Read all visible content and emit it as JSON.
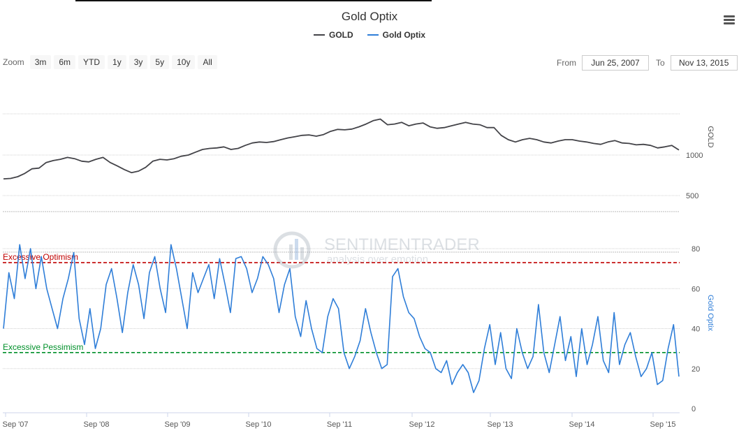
{
  "chart": {
    "title": "Gold Optix",
    "legend": [
      {
        "name": "GOLD",
        "color": "#434348"
      },
      {
        "name": "Gold Optix",
        "color": "#2f7ed8"
      }
    ]
  },
  "menu_icon": "hamburger-icon",
  "zoom": {
    "label": "Zoom",
    "buttons": [
      "3m",
      "6m",
      "YTD",
      "1y",
      "3y",
      "5y",
      "10y",
      "All"
    ]
  },
  "range": {
    "from_label": "From",
    "from_value": "Jun 25, 2007",
    "to_label": "To",
    "to_value": "Nov 13, 2015"
  },
  "watermark": {
    "name": "SENTIMENTRADER",
    "tagline": "analysis over emotion"
  },
  "chart_data": {
    "type": "line",
    "x_ticks": [
      "Sep '07",
      "Sep '08",
      "Sep '09",
      "Sep '10",
      "Sep '11",
      "Sep '12",
      "Sep '13",
      "Sep '14",
      "Sep '15"
    ],
    "panels": [
      {
        "series_name": "GOLD",
        "ylabel": "GOLD",
        "y_ticks": [
          500,
          1000
        ],
        "scale": "log",
        "color": "#434348",
        "values": [
          665,
          670,
          690,
          730,
          790,
          800,
          880,
          910,
          930,
          960,
          940,
          900,
          890,
          930,
          960,
          880,
          830,
          780,
          740,
          760,
          810,
          900,
          930,
          920,
          940,
          980,
          1000,
          1050,
          1100,
          1120,
          1130,
          1150,
          1100,
          1120,
          1180,
          1230,
          1250,
          1240,
          1260,
          1300,
          1340,
          1370,
          1400,
          1410,
          1380,
          1420,
          1500,
          1550,
          1540,
          1560,
          1620,
          1700,
          1800,
          1850,
          1680,
          1700,
          1750,
          1650,
          1700,
          1730,
          1620,
          1580,
          1600,
          1650,
          1700,
          1750,
          1700,
          1680,
          1600,
          1600,
          1400,
          1300,
          1250,
          1300,
          1330,
          1300,
          1250,
          1230,
          1270,
          1300,
          1300,
          1270,
          1250,
          1220,
          1200,
          1250,
          1280,
          1230,
          1220,
          1190,
          1200,
          1180,
          1130,
          1150,
          1180,
          1090
        ]
      },
      {
        "series_name": "Gold Optix",
        "ylabel": "Gold Optix",
        "y_ticks": [
          0,
          20,
          40,
          60,
          80
        ],
        "ylim": [
          0,
          90
        ],
        "color": "#2f7ed8",
        "bands": [
          {
            "label": "Excessive Optimism",
            "value": 73,
            "color": "#c00000"
          },
          {
            "label": "Excessive Pessimism",
            "value": 28,
            "color": "#00902a"
          }
        ],
        "values": [
          40,
          68,
          55,
          82,
          65,
          80,
          60,
          76,
          60,
          50,
          40,
          55,
          65,
          78,
          45,
          32,
          50,
          30,
          40,
          62,
          70,
          55,
          38,
          58,
          72,
          62,
          45,
          68,
          76,
          60,
          48,
          82,
          70,
          55,
          40,
          68,
          58,
          65,
          72,
          55,
          75,
          62,
          48,
          75,
          76,
          70,
          58,
          65,
          76,
          72,
          65,
          48,
          62,
          70,
          46,
          36,
          54,
          40,
          30,
          28,
          46,
          55,
          50,
          28,
          20,
          26,
          34,
          50,
          38,
          28,
          20,
          22,
          66,
          70,
          56,
          48,
          45,
          36,
          30,
          28,
          20,
          18,
          24,
          12,
          18,
          22,
          18,
          8,
          14,
          30,
          42,
          22,
          38,
          20,
          15,
          40,
          28,
          20,
          26,
          52,
          28,
          18,
          32,
          46,
          24,
          36,
          16,
          40,
          22,
          32,
          46,
          24,
          18,
          48,
          22,
          32,
          38,
          26,
          16,
          20,
          28,
          12,
          14,
          30,
          42,
          16
        ]
      }
    ]
  }
}
